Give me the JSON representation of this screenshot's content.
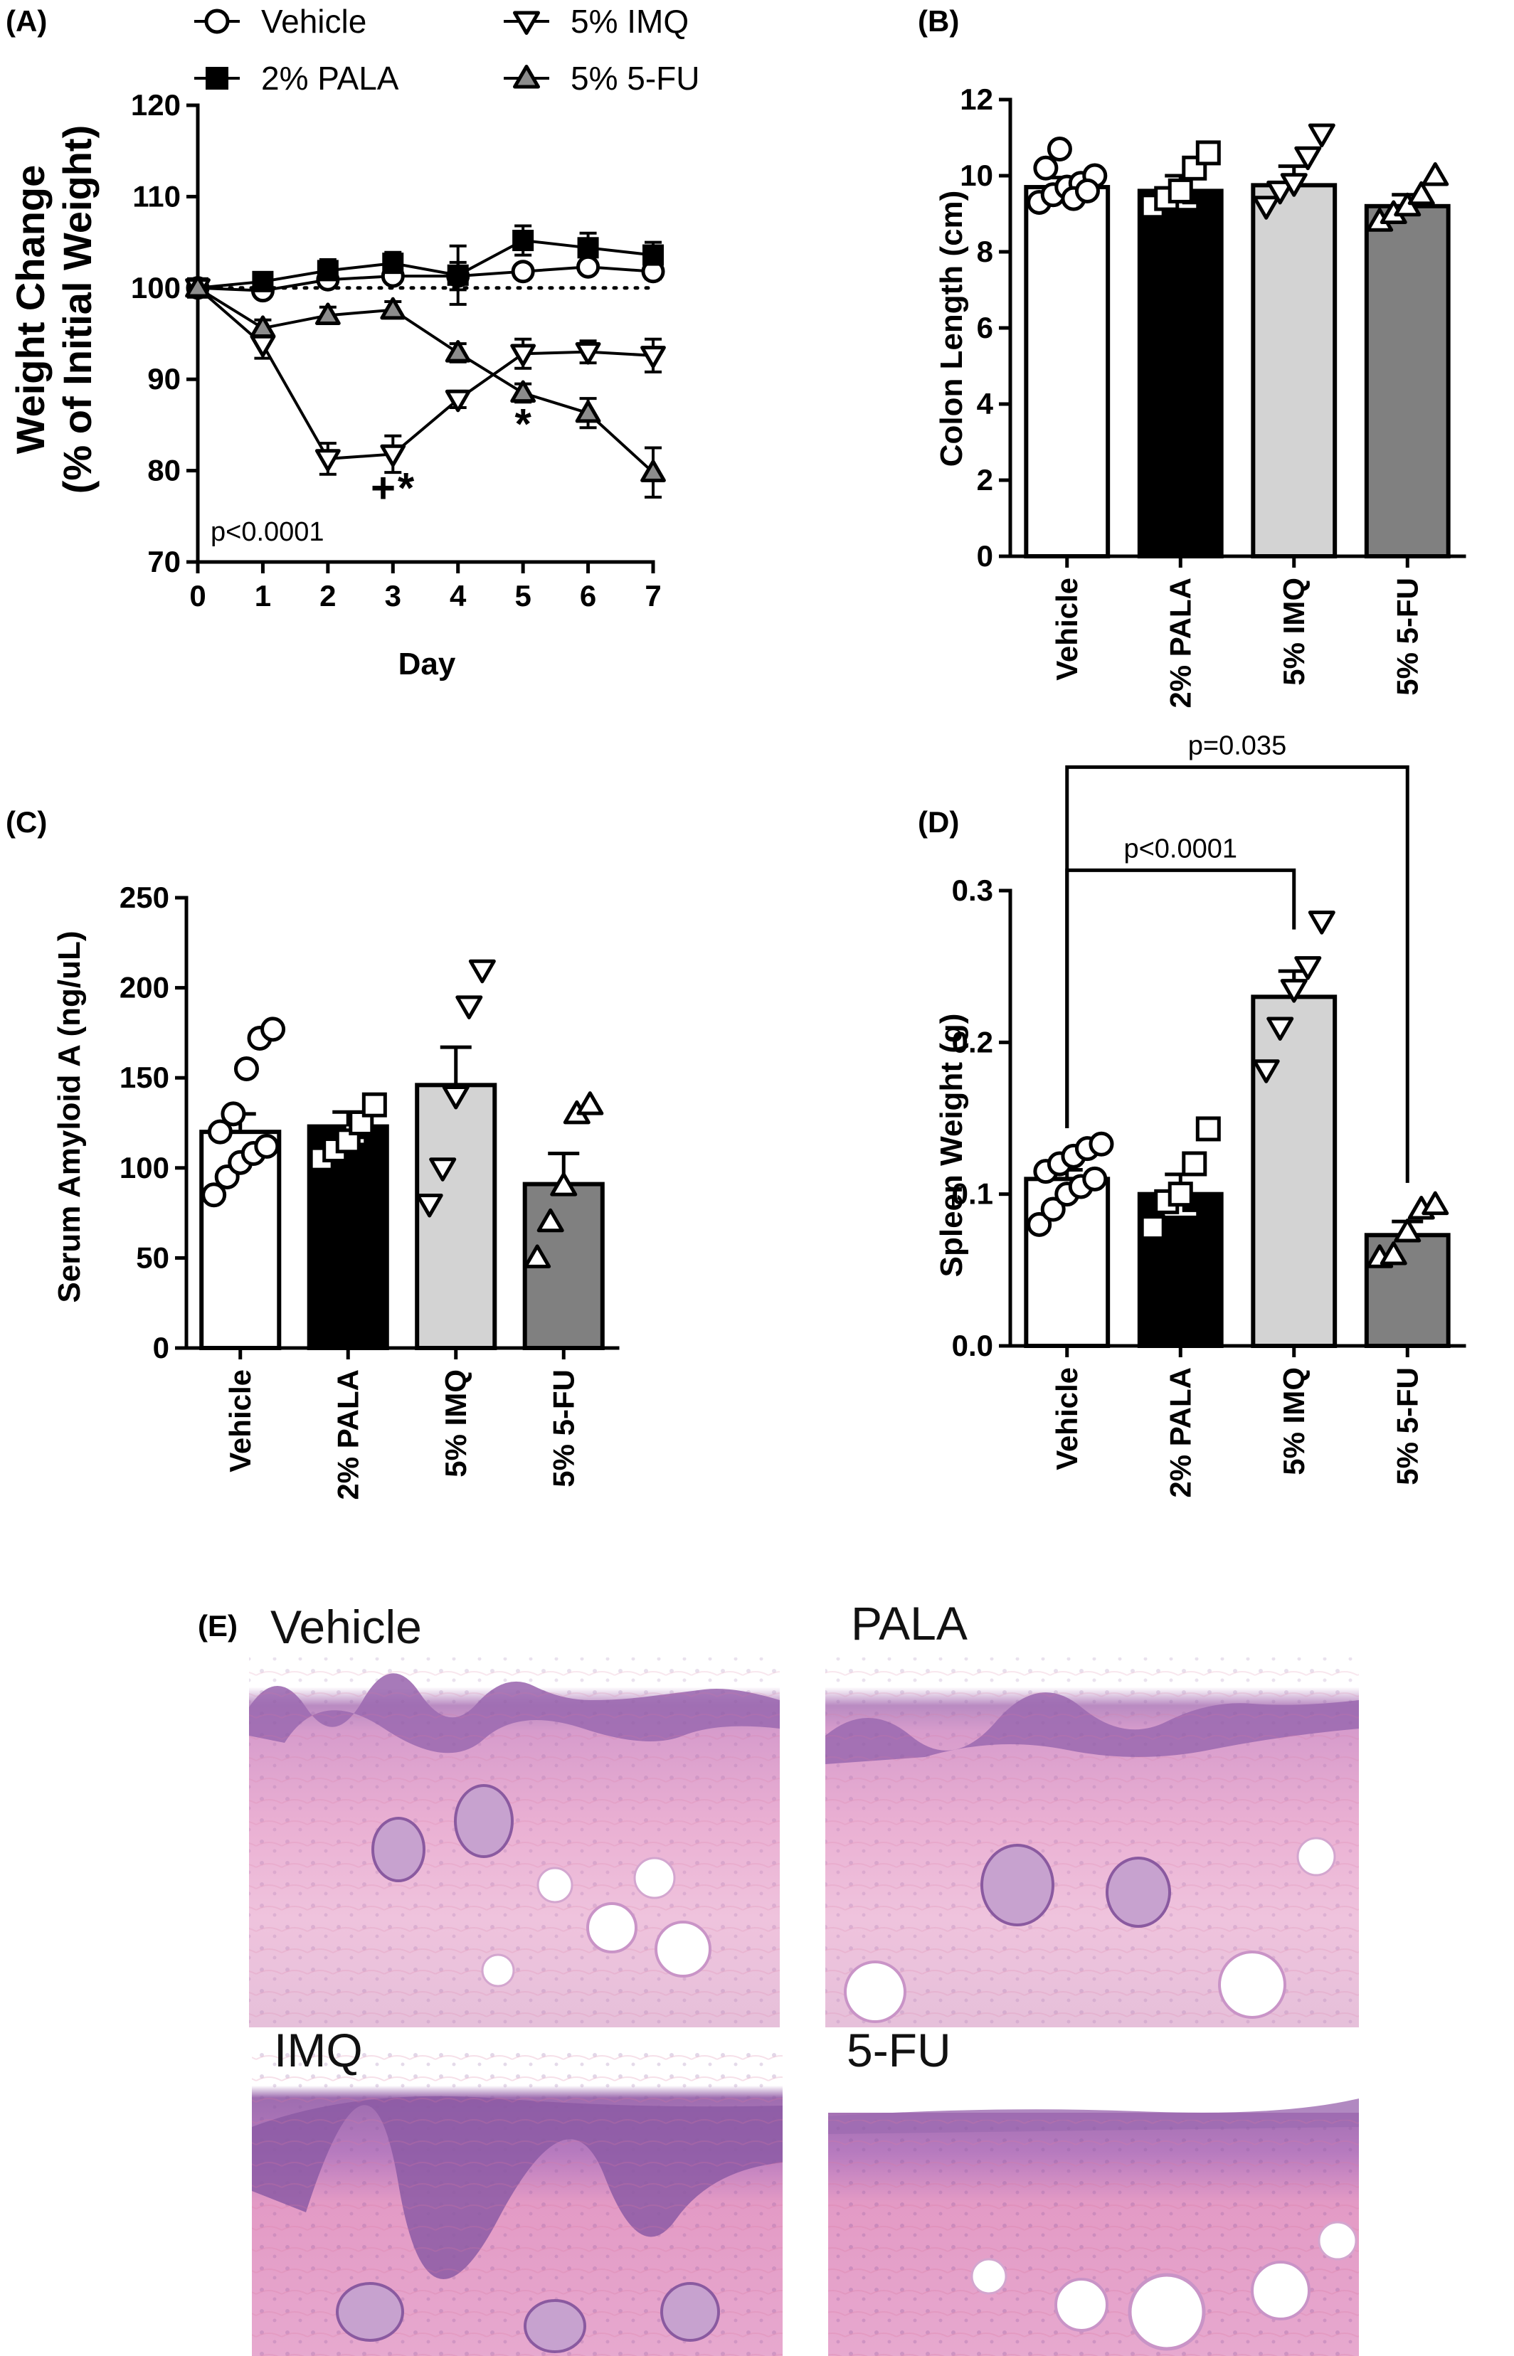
{
  "panels": {
    "A": "(A)",
    "B": "(B)",
    "C": "(C)",
    "D": "(D)",
    "E": "(E)"
  },
  "chart_data": [
    {
      "panel": "A",
      "type": "line",
      "ylabel_line1": "Weight Change",
      "ylabel_line2": "(% of Initial Weight)",
      "xlabel": "Day",
      "x": [
        0,
        1,
        2,
        3,
        4,
        5,
        6,
        7
      ],
      "ylim": [
        70,
        120
      ],
      "yticks": [
        70,
        80,
        90,
        100,
        110,
        120
      ],
      "baseline": 100,
      "annotation": "p<0.0001",
      "marks": [
        {
          "text": "+",
          "x": 2.85,
          "y": 76.5
        },
        {
          "text": "*",
          "x": 3.2,
          "y": 76.5
        },
        {
          "text": "*",
          "x": 5.0,
          "y": 83.5
        }
      ],
      "series": [
        {
          "name": "Vehicle",
          "marker": "circle-open",
          "values": [
            100,
            99.7,
            100.9,
            101.3,
            101.3,
            101.8,
            102.3,
            101.8
          ],
          "err": [
            0.4,
            0.6,
            0.7,
            0.6,
            1.5,
            0.7,
            0.7,
            0.8
          ]
        },
        {
          "name": "2% PALA",
          "marker": "square-filled",
          "values": [
            100,
            100.7,
            101.9,
            102.7,
            101.4,
            105.2,
            104.4,
            103.6
          ],
          "err": [
            0.4,
            1.0,
            1.2,
            1.2,
            3.2,
            1.6,
            1.6,
            1.4
          ]
        },
        {
          "name": "5% IMQ",
          "marker": "triangle-down-open",
          "values": [
            100,
            93.8,
            81.3,
            81.8,
            87.8,
            92.8,
            93.0,
            92.6
          ],
          "err": [
            0.4,
            1.5,
            1.7,
            2.0,
            0.9,
            1.6,
            1.2,
            1.8
          ]
        },
        {
          "name": "5% 5-FU",
          "marker": "triangle-up-gray",
          "values": [
            100,
            95.6,
            97.0,
            97.6,
            92.9,
            88.5,
            86.3,
            79.8
          ],
          "err": [
            0.4,
            0.9,
            0.9,
            0.9,
            1.0,
            1.0,
            1.6,
            2.7
          ]
        }
      ]
    },
    {
      "panel": "B",
      "type": "bar",
      "ylabel": "Colon Length (cm)",
      "categories": [
        "Vehicle",
        "2% PALA",
        "5% IMQ",
        "5% 5-FU"
      ],
      "ylim": [
        0,
        12
      ],
      "yticks": [
        0,
        2,
        4,
        6,
        8,
        10,
        12
      ],
      "values": [
        9.7,
        9.6,
        9.75,
        9.2
      ],
      "err": [
        0.25,
        0.4,
        0.5,
        0.3
      ],
      "points": [
        [
          9.3,
          9.5,
          9.7,
          9.8,
          10.0,
          10.2,
          10.7,
          9.4,
          9.6
        ],
        [
          9.2,
          9.4,
          9.6,
          10.2,
          10.6
        ],
        [
          9.2,
          9.6,
          9.8,
          10.5,
          11.1
        ],
        [
          8.8,
          9.0,
          9.2,
          9.5,
          10.0
        ]
      ]
    },
    {
      "panel": "C",
      "type": "bar",
      "ylabel": "Serum Amyloid A (ng/uL)",
      "categories": [
        "Vehicle",
        "2% PALA",
        "5% IMQ",
        "5% 5-FU"
      ],
      "ylim": [
        0,
        250
      ],
      "yticks": [
        0,
        50,
        100,
        150,
        200,
        250
      ],
      "values": [
        120,
        123,
        146,
        91
      ],
      "err": [
        10,
        8,
        21,
        17
      ],
      "points": [
        [
          85,
          95,
          103,
          108,
          112,
          120,
          130,
          155,
          172,
          177
        ],
        [
          105,
          110,
          115,
          125,
          135
        ],
        [
          80,
          100,
          140,
          190,
          210
        ],
        [
          50,
          70,
          90,
          130,
          135
        ]
      ]
    },
    {
      "panel": "D",
      "type": "bar",
      "ylabel": "Spleen Weight (g)",
      "categories": [
        "Vehicle",
        "2% PALA",
        "5% IMQ",
        "5% 5-FU"
      ],
      "ylim": [
        0.0,
        0.3
      ],
      "yticks": [
        "0.0",
        "0.1",
        "0.2",
        "0.3"
      ],
      "values": [
        0.11,
        0.1,
        0.23,
        0.073
      ],
      "err": [
        0.006,
        0.013,
        0.017,
        0.009
      ],
      "points": [
        [
          0.08,
          0.09,
          0.1,
          0.105,
          0.11,
          0.115,
          0.12,
          0.125,
          0.13,
          0.133
        ],
        [
          0.078,
          0.095,
          0.1,
          0.12,
          0.143
        ],
        [
          0.182,
          0.21,
          0.235,
          0.25,
          0.28
        ],
        [
          0.058,
          0.06,
          0.075,
          0.09,
          0.093
        ]
      ],
      "brackets": [
        {
          "from": 0,
          "to": 2,
          "label": "p<0.0001"
        },
        {
          "from": 0,
          "to": 3,
          "label": "p=0.035"
        }
      ]
    }
  ],
  "histology": {
    "vehicle": "Vehicle",
    "pala": "PALA",
    "imq": "IMQ",
    "fu": "5-FU"
  }
}
